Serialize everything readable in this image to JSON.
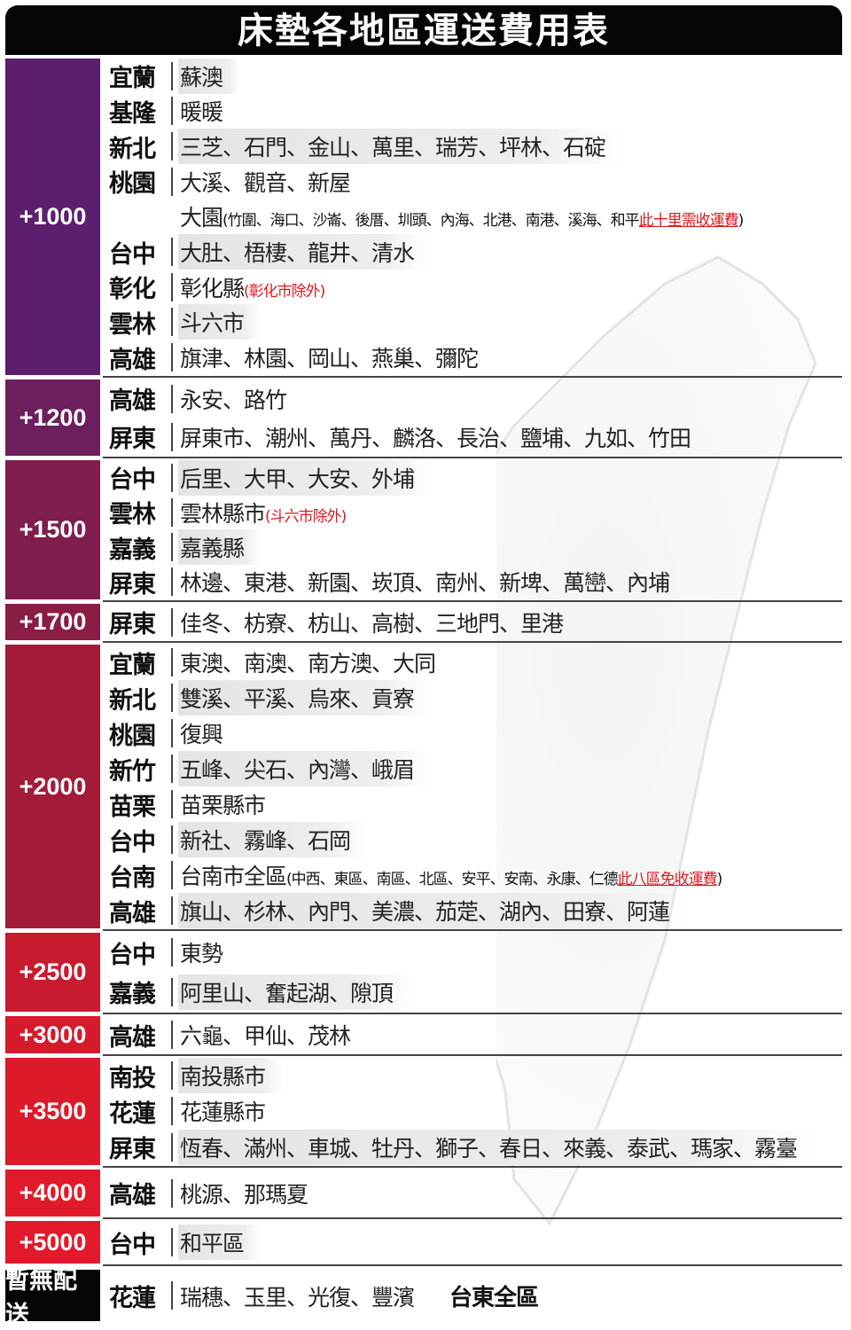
{
  "title": "床墊各地區運送費用表",
  "groups": [
    {
      "fee": "+1000",
      "color": "#5b1f6d",
      "rows": [
        {
          "region": "宜蘭",
          "items": "蘇澳",
          "hl": true
        },
        {
          "region": "基隆",
          "items": "暖暖"
        },
        {
          "region": "新北",
          "items": "三芝、石門、金山、萬里、瑞芳、坪林、石碇",
          "hl": true
        },
        {
          "region": "桃園",
          "items": "大溪、觀音、新屋"
        },
        {
          "region": "",
          "items": "大園",
          "note": "(竹圍、海口、沙崙、後厝、圳頭、內海、北港、南港、溪海、和平",
          "red": "此十里需收運費",
          "note_end": ")"
        },
        {
          "region": "台中",
          "items": "大肚、梧棲、龍井、清水",
          "hl": true
        },
        {
          "region": "彰化",
          "items": "彰化縣",
          "red_plain": "(彰化市除外)"
        },
        {
          "region": "雲林",
          "items": "斗六市",
          "hl": true
        },
        {
          "region": "高雄",
          "items": "旗津、林園、岡山、燕巢、彌陀"
        }
      ]
    },
    {
      "fee": "+1200",
      "color": "#6c1f5c",
      "rows": [
        {
          "region": "高雄",
          "items": "永安、路竹"
        },
        {
          "region": "屏東",
          "items": "屏東市、潮州、萬丹、麟洛、長治、鹽埔、九如、竹田"
        }
      ]
    },
    {
      "fee": "+1500",
      "color": "#7f1e4d",
      "rows": [
        {
          "region": "台中",
          "items": "后里、大甲、大安、外埔",
          "hl": true
        },
        {
          "region": "雲林",
          "items": "雲林縣市",
          "red_plain": "(斗六市除外)"
        },
        {
          "region": "嘉義",
          "items": "嘉義縣",
          "hl": true
        },
        {
          "region": "屏東",
          "items": "林邊、東港、新園、崁頂、南州、新埤、萬巒、內埔"
        }
      ]
    },
    {
      "fee": "+1700",
      "color": "#891d45",
      "rows": [
        {
          "region": "屏東",
          "items": "佳冬、枋寮、枋山、高樹、三地門、里港"
        }
      ]
    },
    {
      "fee": "+2000",
      "color": "#a21c3a",
      "rows": [
        {
          "region": "宜蘭",
          "items": "東澳、南澳、南方澳、大同"
        },
        {
          "region": "新北",
          "items": "雙溪、平溪、烏來、貢寮",
          "hl": true
        },
        {
          "region": "桃園",
          "items": "復興"
        },
        {
          "region": "新竹",
          "items": "五峰、尖石、內灣、峨眉",
          "hl": true
        },
        {
          "region": "苗栗",
          "items": "苗栗縣市"
        },
        {
          "region": "台中",
          "items": "新社、霧峰、石岡",
          "hl": true
        },
        {
          "region": "台南",
          "items": "台南市全區",
          "note": "(中西、東區、南區、北區、安平、安南、永康、仁德",
          "red": "此八區免收運費",
          "note_end": ")"
        },
        {
          "region": "高雄",
          "items": "旗山、杉林、內門、美濃、茄萣、湖內、田寮、阿蓮",
          "hl": true
        }
      ]
    },
    {
      "fee": "+2500",
      "color": "#c81b30",
      "rows": [
        {
          "region": "台中",
          "items": "東勢"
        },
        {
          "region": "嘉義",
          "items": "阿里山、奮起湖、隙頂",
          "hl": true
        }
      ]
    },
    {
      "fee": "+3000",
      "color": "#d51a2c",
      "rows": [
        {
          "region": "高雄",
          "items": "六龜、甲仙、茂林"
        }
      ]
    },
    {
      "fee": "+3500",
      "color": "#dc1a2a",
      "rows": [
        {
          "region": "南投",
          "items": "南投縣市",
          "hl": true
        },
        {
          "region": "花蓮",
          "items": "花蓮縣市"
        },
        {
          "region": "屏東",
          "items": "恆春、滿州、車城、牡丹、獅子、春日、來義、泰武、瑪家、霧臺",
          "hl": true
        }
      ]
    },
    {
      "fee": "+4000",
      "color": "#e01a2a",
      "rows": [
        {
          "region": "高雄",
          "items": "桃源、那瑪夏"
        }
      ]
    },
    {
      "fee": "+5000",
      "color": "#e2192a",
      "rows": [
        {
          "region": "台中",
          "items": "和平區",
          "hl": true
        }
      ]
    },
    {
      "fee": "暫無配送",
      "color": "#050505",
      "rows": [
        {
          "region": "花蓮",
          "items": "瑞穗、玉里、光復、豐濱",
          "extra": "台東全區"
        }
      ]
    }
  ]
}
